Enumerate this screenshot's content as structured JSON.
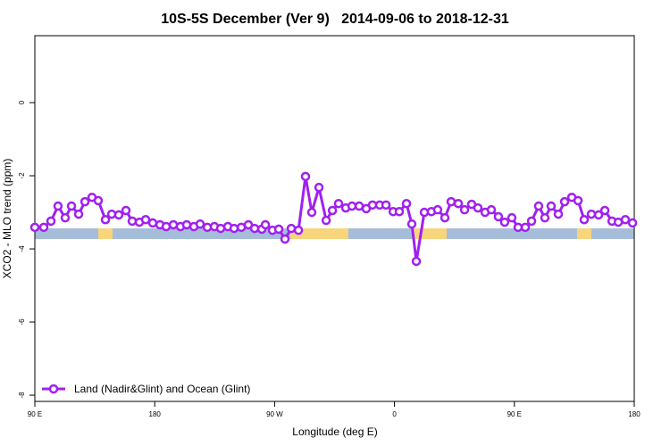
{
  "chart_data": {
    "type": "line",
    "title": "10S-5S December (Ver 9)   2014-09-06 to 2018-12-31",
    "xlabel": "Longitude (deg E)",
    "ylabel": "XCO2 - MLO trend (ppm)",
    "x": [
      90,
      96.7,
      102.1,
      107.4,
      112.8,
      117.5,
      122.9,
      127.6,
      132.9,
      137.6,
      143.0,
      147.7,
      153.0,
      158.4,
      163.1,
      168.5,
      173.2,
      178.5,
      183.9,
      188.6,
      194.0,
      199.3,
      204.0,
      209.4,
      214.1,
      219.5,
      224.8,
      229.5,
      234.9,
      239.6,
      245.0,
      250.3,
      255.0,
      260.4,
      263.1,
      268.4,
      273.1,
      277.8,
      282.5,
      287.9,
      293.2,
      297.9,
      303.3,
      308.7,
      313.4,
      318.0,
      323.4,
      328.1,
      333.5,
      338.8,
      343.5,
      348.9,
      353.6,
      359.0,
      363.6,
      369.0,
      373.0,
      376.4,
      382.4,
      387.7,
      392.4,
      397.8,
      402.5,
      407.9,
      412.6,
      417.9,
      422.6,
      428.0,
      432.7,
      438.0,
      442.7,
      448.1,
      452.8,
      458.2,
      462.9,
      468.2,
      472.9,
      477.6,
      483.0,
      487.7,
      493.1,
      497.8,
      502.4,
      507.8,
      513.2,
      517.9,
      523.3,
      528.0,
      533.3,
      538.7
    ],
    "series": [
      {
        "name": "Land (Nadir&Glint) and Ocean (Glint)",
        "color": "#a020f0",
        "values": [
          -3.41,
          -3.41,
          -3.24,
          -2.83,
          -3.15,
          -2.83,
          -3.05,
          -2.71,
          -2.59,
          -2.68,
          -3.2,
          -3.05,
          -3.07,
          -2.95,
          -3.24,
          -3.27,
          -3.2,
          -3.29,
          -3.34,
          -3.39,
          -3.34,
          -3.39,
          -3.34,
          -3.39,
          -3.32,
          -3.41,
          -3.39,
          -3.44,
          -3.39,
          -3.44,
          -3.41,
          -3.34,
          -3.44,
          -3.46,
          -3.34,
          -3.49,
          -3.46,
          -3.73,
          -3.44,
          -3.49,
          -2.02,
          -3.0,
          -2.32,
          -3.22,
          -2.95,
          -2.76,
          -2.88,
          -2.83,
          -2.83,
          -2.9,
          -2.8,
          -2.8,
          -2.8,
          -2.98,
          -2.98,
          -2.76,
          -3.32,
          -4.34,
          -3.0,
          -2.98,
          -2.93,
          -3.15,
          -2.71,
          -2.76,
          -2.93,
          -2.78,
          -2.88,
          -3.0,
          -2.93,
          -3.12,
          -3.27,
          -3.15,
          -3.41,
          -3.41,
          -3.24,
          -2.83,
          -3.15,
          -2.83,
          -3.05,
          -2.71,
          -2.59,
          -2.68,
          -3.2,
          -3.05,
          -3.07,
          -2.95,
          -3.24,
          -3.27,
          -3.2,
          -3.29
        ]
      }
    ],
    "xlim": [
      90,
      540
    ],
    "ylim": [
      -8.17,
      1.83
    ],
    "xticks": [
      {
        "value": 90,
        "label": "90 E"
      },
      180,
      {
        "value": 270,
        "label": "90 W"
      },
      {
        "value": 360,
        "label": "0"
      },
      {
        "value": 450,
        "label": "90 E"
      },
      {
        "value": 540,
        "label": "180"
      }
    ],
    "yticks": [
      0,
      -2,
      -4,
      -6,
      -8
    ],
    "legend": "bottom-left"
  }
}
